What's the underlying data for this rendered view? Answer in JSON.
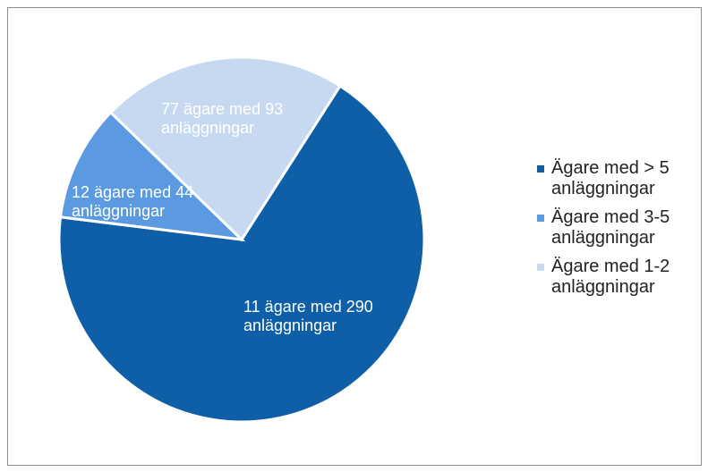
{
  "chart_data": {
    "type": "pie",
    "series": [
      {
        "name": "Ägare med > 5 anläggningar",
        "color": "#0f5ea8",
        "values": [
          290
        ],
        "value_labels": [
          "11 ägare med 290 anläggningar"
        ]
      },
      {
        "name": "Ägare med 3-5 anläggningar",
        "color": "#5b9ae0",
        "values": [
          44
        ],
        "value_labels": [
          "12 ägare med 44 anläggningar"
        ]
      },
      {
        "name": "Ägare med 1-2 anläggningar",
        "color": "#c6d9f1",
        "values": [
          93
        ],
        "value_labels": [
          "77 ägare med 93 anläggningar"
        ]
      }
    ],
    "legend": "right"
  }
}
